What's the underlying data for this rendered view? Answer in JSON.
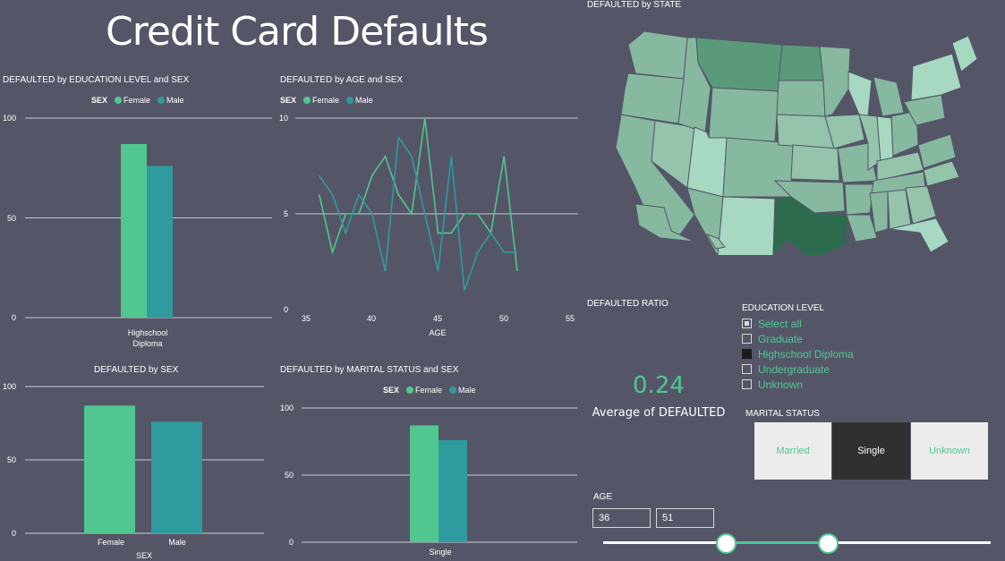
{
  "header": {
    "title": "Credit Card Defaults"
  },
  "colors": {
    "female": "#52c690",
    "male": "#2f9b9e",
    "background": "#545667",
    "accent": "#4fc795"
  },
  "visuals": {
    "edu_sex": {
      "title": "DEFAULTED by EDUCATION LEVEL and SEX",
      "legend": {
        "label": "SEX",
        "items": [
          "Female",
          "Male"
        ]
      },
      "chart_data": {
        "type": "bar",
        "categories": [
          "Highschool Diploma"
        ],
        "series": [
          {
            "name": "Female",
            "values": [
              87
            ]
          },
          {
            "name": "Male",
            "values": [
              76
            ]
          }
        ],
        "ylim": [
          0,
          100
        ],
        "yticks": [
          "100",
          "50",
          "0"
        ],
        "xtick_lines": [
          "Highschool",
          "Diploma"
        ]
      }
    },
    "age_sex": {
      "title": "DEFAULTED by AGE and SEX",
      "legend": {
        "label": "SEX",
        "items": [
          "Female",
          "Male"
        ]
      },
      "xlabel": "AGE",
      "chart_data": {
        "type": "line",
        "x": [
          36,
          37,
          38,
          39,
          40,
          41,
          42,
          43,
          44,
          45,
          46,
          47,
          48,
          49,
          50,
          51
        ],
        "series": [
          {
            "name": "Female",
            "values": [
              6,
              3,
              5,
              5,
              7,
              8,
              6,
              5,
              10,
              4,
              4,
              5,
              5,
              4,
              8,
              2
            ]
          },
          {
            "name": "Male",
            "values": [
              7,
              6,
              4,
              6,
              5,
              2,
              9,
              8,
              5,
              2,
              8,
              1,
              3,
              4,
              3,
              3
            ]
          }
        ],
        "xlim": [
          35,
          55
        ],
        "ylim": [
          0,
          10
        ],
        "xticks": [
          "35",
          "40",
          "45",
          "50",
          "55"
        ],
        "yticks": [
          "10",
          "5",
          "0"
        ]
      }
    },
    "by_sex": {
      "title": "DEFAULTED by SEX",
      "xlabel": "SEX",
      "chart_data": {
        "type": "bar",
        "categories": [
          "Female",
          "Male"
        ],
        "values": [
          87,
          76
        ],
        "ylim": [
          0,
          100
        ],
        "yticks": [
          "100",
          "50",
          "0"
        ]
      }
    },
    "marital_sex": {
      "title": "DEFAULTED by MARITAL STATUS and SEX",
      "legend": {
        "label": "SEX",
        "items": [
          "Female",
          "Male"
        ]
      },
      "chart_data": {
        "type": "bar",
        "categories": [
          "Single"
        ],
        "series": [
          {
            "name": "Female",
            "values": [
              87
            ]
          },
          {
            "name": "Male",
            "values": [
              76
            ]
          }
        ],
        "ylim": [
          0,
          100
        ],
        "yticks": [
          "100",
          "50",
          "0"
        ]
      }
    },
    "map": {
      "title": "DEFAULTED by STATE"
    },
    "ratio": {
      "title": "DEFAULTED RATIO",
      "value": "0.24",
      "label": "Average of DEFAULTED"
    }
  },
  "slicers": {
    "education": {
      "title": "EDUCATION LEVEL",
      "items": [
        {
          "label": "Select all",
          "state": "partial"
        },
        {
          "label": "Graduate",
          "state": "unchecked"
        },
        {
          "label": "Highschool Diploma",
          "state": "checked"
        },
        {
          "label": "Undergraduate",
          "state": "unchecked"
        },
        {
          "label": "Unknown",
          "state": "unchecked"
        }
      ]
    },
    "marital": {
      "title": "MARITAL STATUS",
      "options": [
        {
          "label": "Married",
          "selected": false
        },
        {
          "label": "Single",
          "selected": true
        },
        {
          "label": "Unknown",
          "selected": false
        }
      ]
    },
    "age": {
      "title": "AGE",
      "min": "36",
      "max": "51",
      "range_min": 18,
      "range_max": 75
    }
  }
}
